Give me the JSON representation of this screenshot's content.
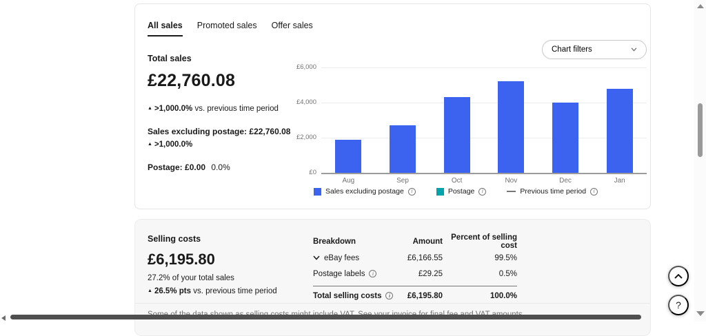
{
  "glyphs": {
    "up_arrow": "▲"
  },
  "tabs": [
    {
      "label": "All sales",
      "active": true
    },
    {
      "label": "Promoted sales",
      "active": false
    },
    {
      "label": "Offer sales",
      "active": false
    }
  ],
  "total_sales": {
    "title": "Total sales",
    "value": "£22,760.08",
    "trend": ">1,000.0%",
    "trend_suffix": "vs. previous time period",
    "sales_excluding_postage_label": "Sales excluding postage:",
    "sales_excluding_postage_value": "£22,760.08",
    "sales_excluding_postage_trend": ">1,000.0%",
    "postage_label": "Postage:",
    "postage_value": "£0.00",
    "postage_trend": "0.0%"
  },
  "chart_filters_label": "Chart filters",
  "chart_data": {
    "type": "bar",
    "title": "",
    "xlabel": "",
    "ylabel": "",
    "categories": [
      "Aug",
      "Sep",
      "Oct",
      "Nov",
      "Dec",
      "Jan"
    ],
    "series": [
      {
        "name": "Sales excluding postage",
        "values": [
          1900,
          2700,
          4300,
          5200,
          4000,
          4800
        ],
        "color": "#3b63ef"
      },
      {
        "name": "Postage",
        "values": [
          0,
          0,
          0,
          0,
          0,
          0
        ],
        "color": "#00a2ac"
      },
      {
        "name": "Previous time period",
        "values": [
          0,
          0,
          0,
          0,
          0,
          0
        ],
        "color": "#767676"
      }
    ],
    "ylim": [
      0,
      6000
    ],
    "y_ticks": [
      "£6,000",
      "£4,000",
      "£2,000",
      "£0"
    ],
    "grid": true,
    "legend_position": "bottom",
    "legend": [
      {
        "label": "Sales excluding postage",
        "color": "#3b63ef",
        "type": "square"
      },
      {
        "label": "Postage",
        "color": "#00a2ac",
        "type": "square"
      },
      {
        "label": "Previous time period",
        "color": "#767676",
        "type": "line"
      }
    ]
  },
  "selling_costs": {
    "title": "Selling costs",
    "value": "£6,195.80",
    "subtitle": "27.2% of your total sales",
    "trend": "26.5% pts",
    "trend_suffix": "vs. previous time period"
  },
  "breakdown": {
    "headers": [
      "Breakdown",
      "Amount",
      "Percent of selling cost"
    ],
    "rows": [
      {
        "label": "eBay fees",
        "amount": "£6,166.55",
        "percent": "99.5%"
      },
      {
        "label": "Postage labels",
        "amount": "£29.25",
        "percent": "0.5%"
      }
    ],
    "total": {
      "label": "Total selling costs",
      "amount": "£6,195.80",
      "percent": "100.0%"
    }
  },
  "vat_note": "Some of the data shown as selling costs might include VAT. See your invoice for final fee and VAT amounts.",
  "colors": {
    "bar_blue": "#3b63ef",
    "teal": "#00a2ac",
    "card_gray": "#f7f7f7"
  }
}
